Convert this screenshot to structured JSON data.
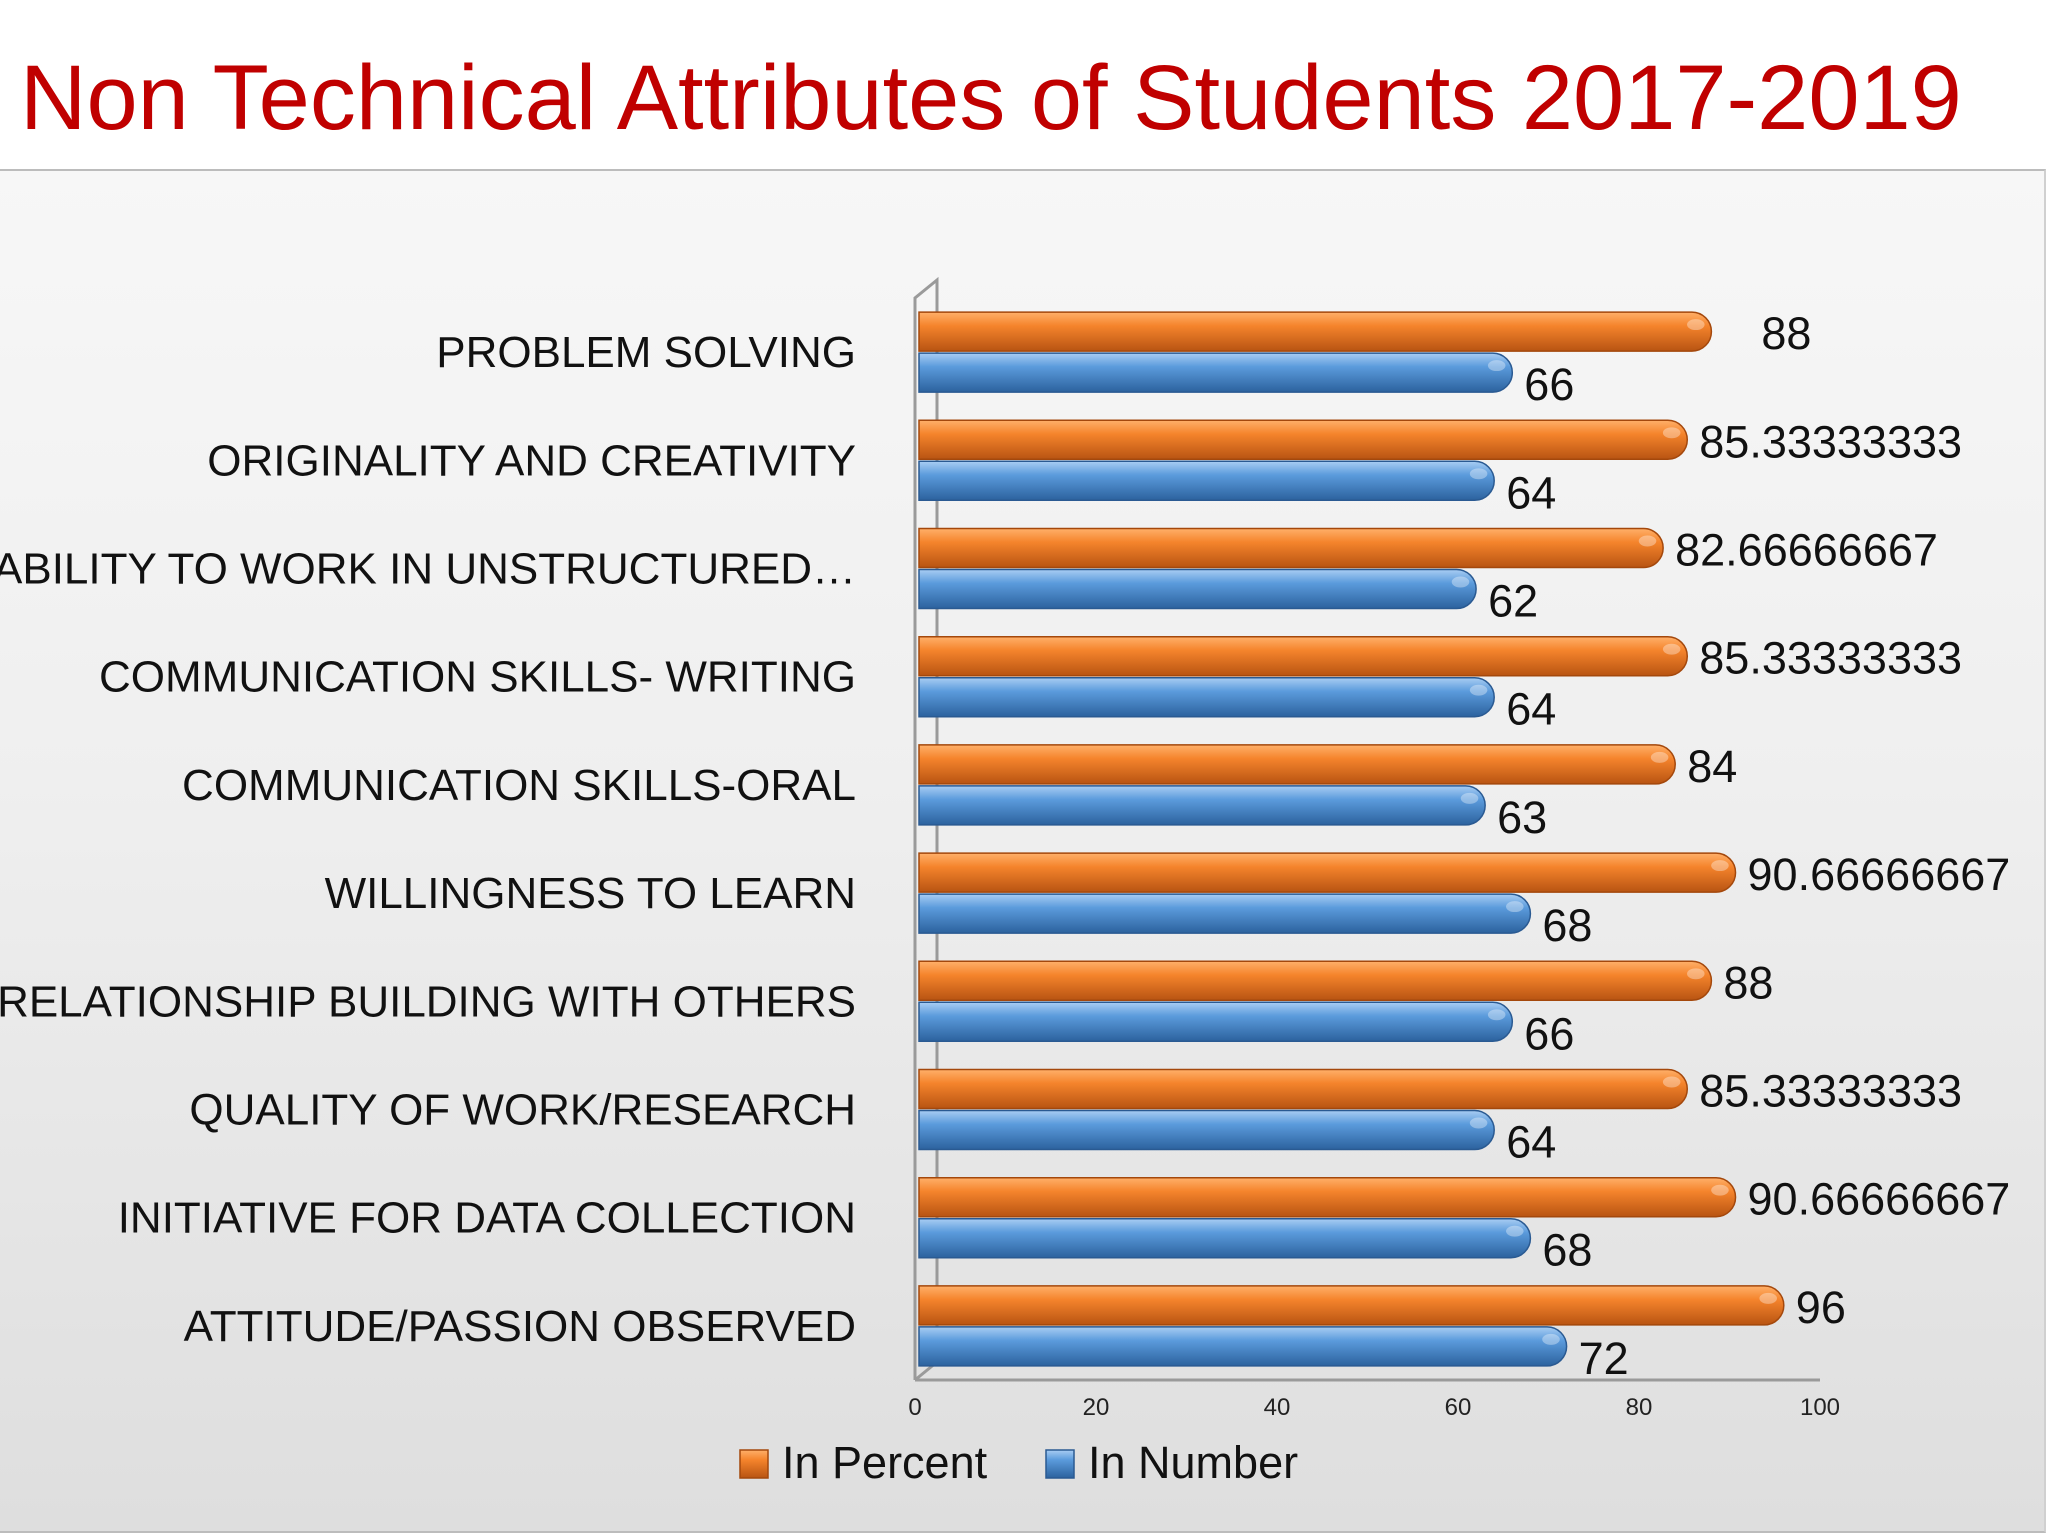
{
  "colors": {
    "title": "#c00000",
    "in_percent": "#f5842c",
    "in_number": "#5b9bdc"
  },
  "chart_data": {
    "type": "bar",
    "orientation": "horizontal",
    "title": "Non Technical Attributes of Students 2017-2019",
    "categories": [
      "PROBLEM SOLVING",
      "ORIGINALITY AND CREATIVITY",
      "ABILITY TO WORK IN UNSTRUCTURED…",
      "COMMUNICATION SKILLS- WRITING",
      "COMMUNICATION SKILLS-ORAL",
      "WILLINGNESS TO LEARN",
      "RELATIONSHIP BUILDING WITH OTHERS",
      "QUALITY OF WORK/RESEARCH",
      "INITIATIVE FOR DATA COLLECTION",
      "ATTITUDE/PASSION OBSERVED"
    ],
    "series": [
      {
        "name": "In Percent",
        "values": [
          88,
          85.33333333,
          82.66666667,
          85.33333333,
          84,
          90.66666667,
          88,
          85.33333333,
          90.66666667,
          96
        ],
        "labels": [
          "88",
          "85.33333333",
          "82.66666667",
          "85.33333333",
          "84",
          "90.66666667",
          "88",
          "85.33333333",
          "90.66666667",
          "96"
        ],
        "color": "#f5842c"
      },
      {
        "name": "In Number",
        "values": [
          66,
          64,
          62,
          64,
          63,
          68,
          66,
          64,
          68,
          72
        ],
        "labels": [
          "66",
          "64",
          "62",
          "64",
          "63",
          "68",
          "66",
          "64",
          "68",
          "72"
        ],
        "color": "#5b9bdc"
      }
    ],
    "xlim": [
      0,
      100
    ],
    "xticks": [
      "0",
      "20",
      "40",
      "60",
      "80",
      "100"
    ],
    "legend_position": "bottom",
    "grid": false
  }
}
